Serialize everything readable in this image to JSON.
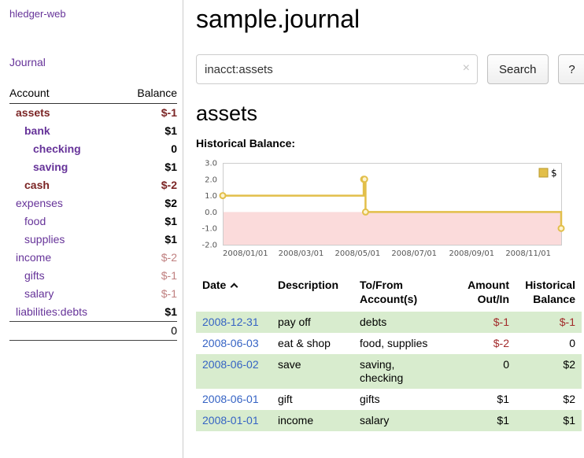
{
  "app": {
    "brand": "hledger-web",
    "nav": {
      "journal": "Journal"
    }
  },
  "sidebar": {
    "accounts_table": {
      "col_account": "Account",
      "col_balance": "Balance",
      "rows": [
        {
          "name": "assets",
          "balance": "$-1",
          "indent": 0,
          "bold": true,
          "name_color": "maroon",
          "balance_color": "maroon"
        },
        {
          "name": "bank",
          "balance": "$1",
          "indent": 1,
          "bold": true,
          "name_color": "purple",
          "balance_color": "black"
        },
        {
          "name": "checking",
          "balance": "0",
          "indent": 2,
          "bold": true,
          "name_color": "purple",
          "balance_color": "black"
        },
        {
          "name": "saving",
          "balance": "$1",
          "indent": 2,
          "bold": true,
          "name_color": "purple",
          "balance_color": "black"
        },
        {
          "name": "cash",
          "balance": "$-2",
          "indent": 1,
          "bold": true,
          "name_color": "maroon",
          "balance_color": "maroon"
        },
        {
          "name": "expenses",
          "balance": "$2",
          "indent": 0,
          "bold": false,
          "name_color": "purple",
          "balance_color": "black"
        },
        {
          "name": "food",
          "balance": "$1",
          "indent": 1,
          "bold": false,
          "name_color": "purple",
          "balance_color": "black"
        },
        {
          "name": "supplies",
          "balance": "$1",
          "indent": 1,
          "bold": false,
          "name_color": "purple",
          "balance_color": "black"
        },
        {
          "name": "income",
          "balance": "$-2",
          "indent": 0,
          "bold": false,
          "name_color": "purple",
          "balance_color": "faded"
        },
        {
          "name": "gifts",
          "balance": "$-1",
          "indent": 1,
          "bold": false,
          "name_color": "purple",
          "balance_color": "faded"
        },
        {
          "name": "salary",
          "balance": "$-1",
          "indent": 1,
          "bold": false,
          "name_color": "purple",
          "balance_color": "faded"
        },
        {
          "name": "liabilities:debts",
          "balance": "$1",
          "indent": 0,
          "bold": false,
          "name_color": "purple",
          "balance_color": "black"
        }
      ],
      "total": "0"
    }
  },
  "main": {
    "title": "sample.journal",
    "search": {
      "value": "inacct:assets",
      "clear_label": "×",
      "button": "Search",
      "help_button": "?"
    },
    "account_heading": "assets",
    "chart_heading": "Historical Balance:"
  },
  "chart_data": {
    "type": "line",
    "step": true,
    "title": "Historical Balance",
    "legend": [
      "$"
    ],
    "legend_position": "top-right",
    "x": [
      "2008-01-01",
      "2008-06-01",
      "2008-06-02",
      "2008-06-03",
      "2008-12-31"
    ],
    "values": [
      1,
      2,
      2,
      0,
      -1
    ],
    "ylim": [
      -2.0,
      3.0
    ],
    "yticks": [
      3.0,
      2.0,
      1.0,
      0.0,
      -1.0,
      -2.0
    ],
    "xtick_labels": [
      "2008/01/01",
      "2008/03/01",
      "2008/05/01",
      "2008/07/01",
      "2008/09/01",
      "2008/11/01"
    ],
    "xrange": [
      "2008-01-01",
      "2008-12-31"
    ],
    "series_color": "#e2bf4a",
    "marker_fill": "#fdf3cf",
    "negative_region_color": "#fbdbdb",
    "grid_border_color": "#cccccc"
  },
  "register": {
    "columns": [
      "Date",
      "Description",
      "To/From Account(s)",
      "Amount Out/In",
      "Historical Balance"
    ],
    "rows": [
      {
        "date": "2008-12-31",
        "description": "pay off",
        "accounts": "debts",
        "amount": "$-1",
        "balance": "$-1"
      },
      {
        "date": "2008-06-03",
        "description": "eat & shop",
        "accounts": "food, supplies",
        "amount": "$-2",
        "balance": "0"
      },
      {
        "date": "2008-06-02",
        "description": "save",
        "accounts": "saving,\nchecking",
        "amount": "0",
        "balance": "$2"
      },
      {
        "date": "2008-06-01",
        "description": "gift",
        "accounts": "gifts",
        "amount": "$1",
        "balance": "$2"
      },
      {
        "date": "2008-01-01",
        "description": "income",
        "accounts": "salary",
        "amount": "$1",
        "balance": "$1"
      }
    ]
  },
  "colors": {
    "link_purple": "#663399",
    "negative_strong": "#7b2525",
    "negative_faded": "#bf7f7f",
    "table_negative_red": "#a22b2b",
    "date_link_blue": "#3563c4",
    "row_stripe_green": "#d8ecce",
    "chart_line_gold": "#e2bf4a",
    "chart_negative_pink": "#fbdbdb"
  }
}
